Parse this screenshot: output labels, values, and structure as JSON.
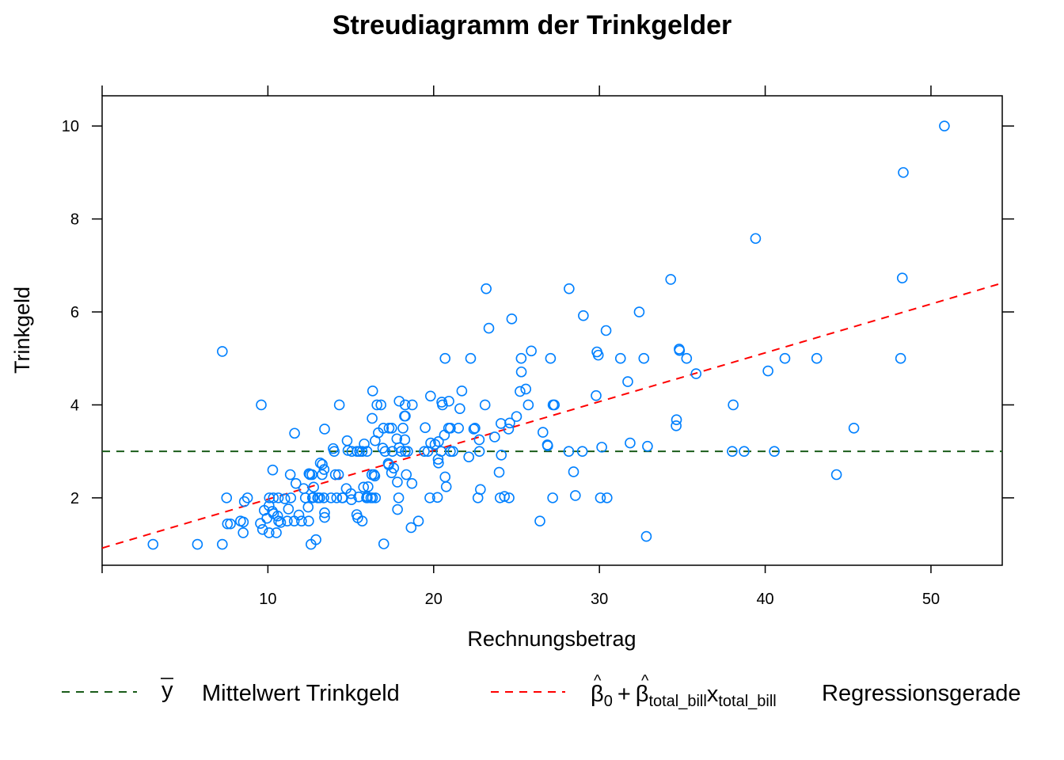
{
  "chart_data": {
    "type": "scatter",
    "title": "Streudiagramm der Trinkgelder",
    "xlabel": "Rechnungsbetrag",
    "ylabel": "Trinkgeld",
    "xlim": [
      0,
      54.3
    ],
    "ylim": [
      0.55,
      10.65
    ],
    "xticks": [
      10,
      20,
      30,
      40,
      50
    ],
    "yticks": [
      2,
      4,
      6,
      8,
      10
    ],
    "grid": false,
    "point_color": "#0080ff",
    "mean_line": {
      "y": 3.0,
      "color": "#1a5c1a"
    },
    "regression_line": {
      "intercept": 0.92,
      "slope": 0.105,
      "color": "#ff0000"
    },
    "legend": {
      "placement": "bottom",
      "items": [
        {
          "symbol": "y",
          "label": "Mittelwert Trinkgeld",
          "color": "#1a5c1a"
        },
        {
          "beta": "β",
          "sub0": "0",
          "plus": "+",
          "sub1": "total_bill",
          "var": "x",
          "sub2": "total_bill",
          "label": "Regressionsgerade",
          "color": "#ff0000"
        }
      ]
    },
    "points": [
      [
        3.07,
        1.0
      ],
      [
        5.75,
        1.0
      ],
      [
        7.25,
        1.0
      ],
      [
        7.25,
        5.15
      ],
      [
        7.51,
        2.0
      ],
      [
        7.56,
        1.44
      ],
      [
        7.74,
        1.44
      ],
      [
        8.35,
        1.5
      ],
      [
        8.51,
        1.25
      ],
      [
        8.52,
        1.48
      ],
      [
        8.58,
        1.92
      ],
      [
        8.77,
        2.0
      ],
      [
        9.55,
        1.45
      ],
      [
        9.6,
        4.0
      ],
      [
        9.68,
        1.32
      ],
      [
        9.78,
        1.73
      ],
      [
        9.94,
        1.56
      ],
      [
        10.07,
        1.25
      ],
      [
        10.07,
        1.83
      ],
      [
        10.09,
        2.0
      ],
      [
        10.27,
        1.71
      ],
      [
        10.29,
        2.6
      ],
      [
        10.33,
        2.0
      ],
      [
        10.34,
        1.66
      ],
      [
        10.51,
        1.25
      ],
      [
        10.59,
        1.61
      ],
      [
        10.63,
        2.0
      ],
      [
        10.65,
        1.5
      ],
      [
        10.77,
        1.47
      ],
      [
        11.02,
        1.98
      ],
      [
        11.17,
        1.5
      ],
      [
        11.24,
        1.76
      ],
      [
        11.35,
        2.5
      ],
      [
        11.38,
        2.0
      ],
      [
        11.59,
        1.5
      ],
      [
        11.61,
        3.39
      ],
      [
        11.69,
        2.31
      ],
      [
        11.87,
        1.63
      ],
      [
        12.03,
        1.5
      ],
      [
        12.16,
        2.2
      ],
      [
        12.26,
        2.0
      ],
      [
        12.43,
        1.8
      ],
      [
        12.46,
        1.5
      ],
      [
        12.48,
        2.52
      ],
      [
        12.54,
        2.5
      ],
      [
        12.6,
        1.0
      ],
      [
        12.66,
        2.5
      ],
      [
        12.69,
        2.0
      ],
      [
        12.74,
        2.01
      ],
      [
        12.76,
        2.23
      ],
      [
        12.9,
        1.1
      ],
      [
        13.0,
        2.0
      ],
      [
        13.03,
        2.0
      ],
      [
        13.13,
        2.0
      ],
      [
        13.16,
        2.75
      ],
      [
        13.27,
        2.5
      ],
      [
        13.28,
        2.72
      ],
      [
        13.37,
        2.0
      ],
      [
        13.39,
        2.61
      ],
      [
        13.42,
        1.58
      ],
      [
        13.42,
        3.48
      ],
      [
        13.42,
        1.68
      ],
      [
        13.81,
        2.0
      ],
      [
        13.94,
        3.06
      ],
      [
        14.0,
        3.0
      ],
      [
        14.07,
        2.5
      ],
      [
        14.15,
        2.0
      ],
      [
        14.26,
        2.5
      ],
      [
        14.31,
        4.0
      ],
      [
        14.48,
        2.0
      ],
      [
        14.52,
        2.0
      ],
      [
        14.73,
        2.2
      ],
      [
        14.78,
        3.23
      ],
      [
        14.83,
        3.02
      ],
      [
        15.01,
        2.09
      ],
      [
        15.04,
        1.96
      ],
      [
        15.06,
        3.0
      ],
      [
        15.36,
        1.64
      ],
      [
        15.38,
        3.0
      ],
      [
        15.42,
        1.57
      ],
      [
        15.48,
        2.02
      ],
      [
        15.53,
        3.0
      ],
      [
        15.69,
        1.5
      ],
      [
        15.69,
        3.0
      ],
      [
        15.77,
        2.23
      ],
      [
        15.81,
        3.16
      ],
      [
        15.95,
        2.0
      ],
      [
        15.98,
        2.03
      ],
      [
        15.98,
        3.0
      ],
      [
        16.0,
        2.0
      ],
      [
        16.04,
        2.24
      ],
      [
        16.21,
        2.0
      ],
      [
        16.27,
        2.5
      ],
      [
        16.29,
        3.71
      ],
      [
        16.31,
        2.0
      ],
      [
        16.32,
        4.3
      ],
      [
        16.4,
        2.5
      ],
      [
        16.45,
        2.47
      ],
      [
        16.47,
        3.23
      ],
      [
        16.49,
        2.0
      ],
      [
        16.58,
        4.0
      ],
      [
        16.66,
        3.4
      ],
      [
        16.82,
        4.0
      ],
      [
        16.93,
        3.07
      ],
      [
        16.97,
        3.5
      ],
      [
        16.99,
        1.01
      ],
      [
        17.07,
        3.0
      ],
      [
        17.26,
        2.74
      ],
      [
        17.29,
        2.71
      ],
      [
        17.31,
        3.5
      ],
      [
        17.46,
        2.54
      ],
      [
        17.47,
        3.5
      ],
      [
        17.51,
        3.0
      ],
      [
        17.59,
        2.64
      ],
      [
        17.78,
        3.27
      ],
      [
        17.81,
        2.34
      ],
      [
        17.82,
        1.75
      ],
      [
        17.89,
        2.0
      ],
      [
        17.92,
        4.08
      ],
      [
        17.92,
        3.08
      ],
      [
        18.04,
        3.0
      ],
      [
        18.15,
        3.5
      ],
      [
        18.24,
        3.76
      ],
      [
        18.26,
        3.25
      ],
      [
        18.28,
        4.0
      ],
      [
        18.29,
        3.76
      ],
      [
        18.29,
        3.0
      ],
      [
        18.35,
        2.5
      ],
      [
        18.43,
        3.0
      ],
      [
        18.64,
        1.36
      ],
      [
        18.69,
        2.31
      ],
      [
        18.71,
        4.0
      ],
      [
        19.08,
        1.5
      ],
      [
        19.44,
        3.0
      ],
      [
        19.49,
        3.51
      ],
      [
        19.65,
        3.0
      ],
      [
        19.77,
        2.0
      ],
      [
        19.81,
        4.19
      ],
      [
        19.82,
        3.18
      ],
      [
        20.08,
        3.15
      ],
      [
        20.23,
        2.01
      ],
      [
        20.27,
        2.83
      ],
      [
        20.29,
        2.75
      ],
      [
        20.29,
        3.21
      ],
      [
        20.45,
        3.0
      ],
      [
        20.49,
        4.06
      ],
      [
        20.53,
        4.0
      ],
      [
        20.65,
        3.35
      ],
      [
        20.69,
        2.45
      ],
      [
        20.69,
        5.0
      ],
      [
        20.76,
        2.24
      ],
      [
        20.9,
        3.5
      ],
      [
        20.92,
        4.08
      ],
      [
        21.01,
        3.5
      ],
      [
        21.01,
        3.0
      ],
      [
        21.16,
        3.0
      ],
      [
        21.5,
        3.5
      ],
      [
        21.58,
        3.92
      ],
      [
        21.7,
        4.3
      ],
      [
        22.12,
        2.88
      ],
      [
        22.23,
        5.0
      ],
      [
        22.42,
        3.48
      ],
      [
        22.49,
        3.5
      ],
      [
        22.67,
        2.0
      ],
      [
        22.75,
        3.25
      ],
      [
        22.76,
        3.0
      ],
      [
        22.82,
        2.18
      ],
      [
        23.1,
        4.0
      ],
      [
        23.17,
        6.5
      ],
      [
        23.33,
        5.65
      ],
      [
        23.68,
        3.31
      ],
      [
        23.95,
        2.55
      ],
      [
        24.01,
        2.0
      ],
      [
        24.06,
        3.6
      ],
      [
        24.08,
        2.92
      ],
      [
        24.27,
        2.03
      ],
      [
        24.52,
        3.48
      ],
      [
        24.55,
        2.0
      ],
      [
        24.59,
        3.61
      ],
      [
        24.71,
        5.85
      ],
      [
        25.0,
        3.75
      ],
      [
        25.21,
        4.29
      ],
      [
        25.28,
        5.0
      ],
      [
        25.29,
        4.71
      ],
      [
        25.56,
        4.34
      ],
      [
        25.71,
        4.0
      ],
      [
        25.89,
        5.16
      ],
      [
        26.41,
        1.5
      ],
      [
        26.59,
        3.41
      ],
      [
        26.86,
        3.14
      ],
      [
        26.88,
        3.12
      ],
      [
        27.05,
        5.0
      ],
      [
        27.18,
        2.0
      ],
      [
        27.2,
        4.0
      ],
      [
        27.28,
        4.0
      ],
      [
        28.15,
        3.0
      ],
      [
        28.17,
        6.5
      ],
      [
        28.44,
        2.56
      ],
      [
        28.55,
        2.05
      ],
      [
        28.97,
        3.0
      ],
      [
        29.03,
        5.92
      ],
      [
        29.8,
        4.2
      ],
      [
        29.85,
        5.14
      ],
      [
        29.93,
        5.07
      ],
      [
        30.06,
        2.0
      ],
      [
        30.14,
        3.09
      ],
      [
        30.4,
        5.6
      ],
      [
        30.46,
        2.0
      ],
      [
        31.27,
        5.0
      ],
      [
        31.71,
        4.5
      ],
      [
        31.85,
        3.18
      ],
      [
        32.4,
        6.0
      ],
      [
        32.68,
        5.0
      ],
      [
        32.83,
        1.17
      ],
      [
        32.9,
        3.11
      ],
      [
        34.3,
        6.7
      ],
      [
        34.63,
        3.55
      ],
      [
        34.65,
        3.68
      ],
      [
        34.81,
        5.2
      ],
      [
        34.83,
        5.17
      ],
      [
        35.26,
        5.0
      ],
      [
        35.83,
        4.67
      ],
      [
        38.01,
        3.0
      ],
      [
        38.07,
        4.0
      ],
      [
        38.73,
        3.0
      ],
      [
        39.42,
        7.58
      ],
      [
        40.17,
        4.73
      ],
      [
        40.55,
        3.0
      ],
      [
        41.19,
        5.0
      ],
      [
        43.11,
        5.0
      ],
      [
        44.3,
        2.5
      ],
      [
        45.35,
        3.5
      ],
      [
        48.17,
        5.0
      ],
      [
        48.27,
        6.73
      ],
      [
        48.33,
        9.0
      ],
      [
        50.81,
        10.0
      ]
    ]
  }
}
